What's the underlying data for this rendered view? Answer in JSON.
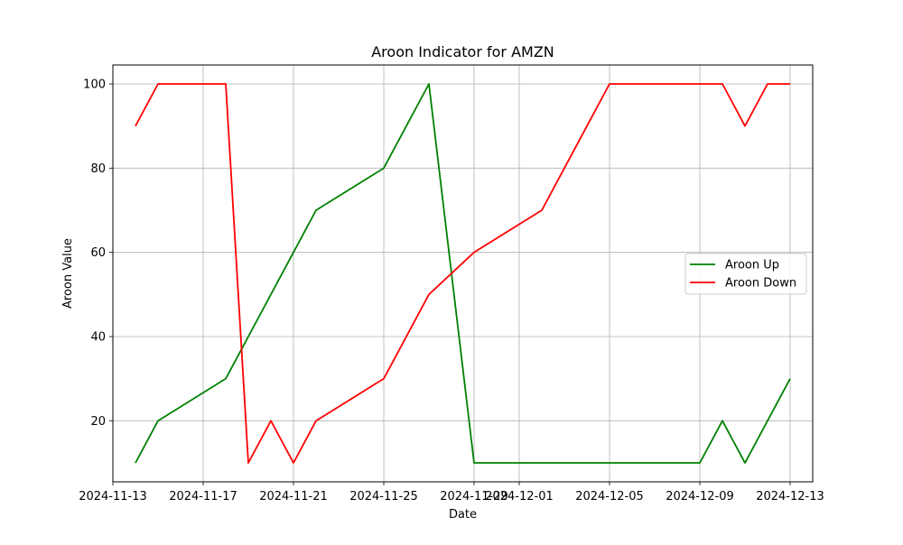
{
  "chart_data": {
    "type": "line",
    "title": "Aroon Indicator for AMZN",
    "xlabel": "Date",
    "ylabel": "Aroon Value",
    "grid": true,
    "legend_position": "center-right",
    "x_range": [
      "2024-11-13",
      "2024-12-14"
    ],
    "ylim": [
      5.5,
      104.5
    ],
    "x_ticks": [
      "2024-11-13",
      "2024-11-17",
      "2024-11-21",
      "2024-11-25",
      "2024-11-29",
      "2024-12-01",
      "2024-12-05",
      "2024-12-09",
      "2024-12-13"
    ],
    "y_ticks": [
      20,
      40,
      60,
      80,
      100
    ],
    "series": [
      {
        "name": "Aroon Up",
        "color": "#008000",
        "points": [
          [
            "2024-11-14",
            10
          ],
          [
            "2024-11-15",
            20
          ],
          [
            "2024-11-18",
            30
          ],
          [
            "2024-11-19",
            40
          ],
          [
            "2024-11-20",
            50
          ],
          [
            "2024-11-21",
            60
          ],
          [
            "2024-11-22",
            70
          ],
          [
            "2024-11-25",
            80
          ],
          [
            "2024-11-27",
            100
          ],
          [
            "2024-11-29",
            10
          ],
          [
            "2024-12-02",
            10
          ],
          [
            "2024-12-03",
            10
          ],
          [
            "2024-12-04",
            10
          ],
          [
            "2024-12-05",
            10
          ],
          [
            "2024-12-06",
            10
          ],
          [
            "2024-12-09",
            10
          ],
          [
            "2024-12-10",
            20
          ],
          [
            "2024-12-11",
            10
          ],
          [
            "2024-12-12",
            20
          ],
          [
            "2024-12-13",
            30
          ]
        ]
      },
      {
        "name": "Aroon Down",
        "color": "#ff0000",
        "points": [
          [
            "2024-11-14",
            90
          ],
          [
            "2024-11-15",
            100
          ],
          [
            "2024-11-18",
            100
          ],
          [
            "2024-11-19",
            10
          ],
          [
            "2024-11-20",
            20
          ],
          [
            "2024-11-21",
            10
          ],
          [
            "2024-11-22",
            20
          ],
          [
            "2024-11-25",
            30
          ],
          [
            "2024-11-27",
            50
          ],
          [
            "2024-11-29",
            60
          ],
          [
            "2024-12-02",
            70
          ],
          [
            "2024-12-03",
            80
          ],
          [
            "2024-12-04",
            90
          ],
          [
            "2024-12-05",
            100
          ],
          [
            "2024-12-06",
            100
          ],
          [
            "2024-12-09",
            100
          ],
          [
            "2024-12-10",
            100
          ],
          [
            "2024-12-11",
            90
          ],
          [
            "2024-12-12",
            100
          ],
          [
            "2024-12-13",
            100
          ]
        ]
      }
    ]
  }
}
